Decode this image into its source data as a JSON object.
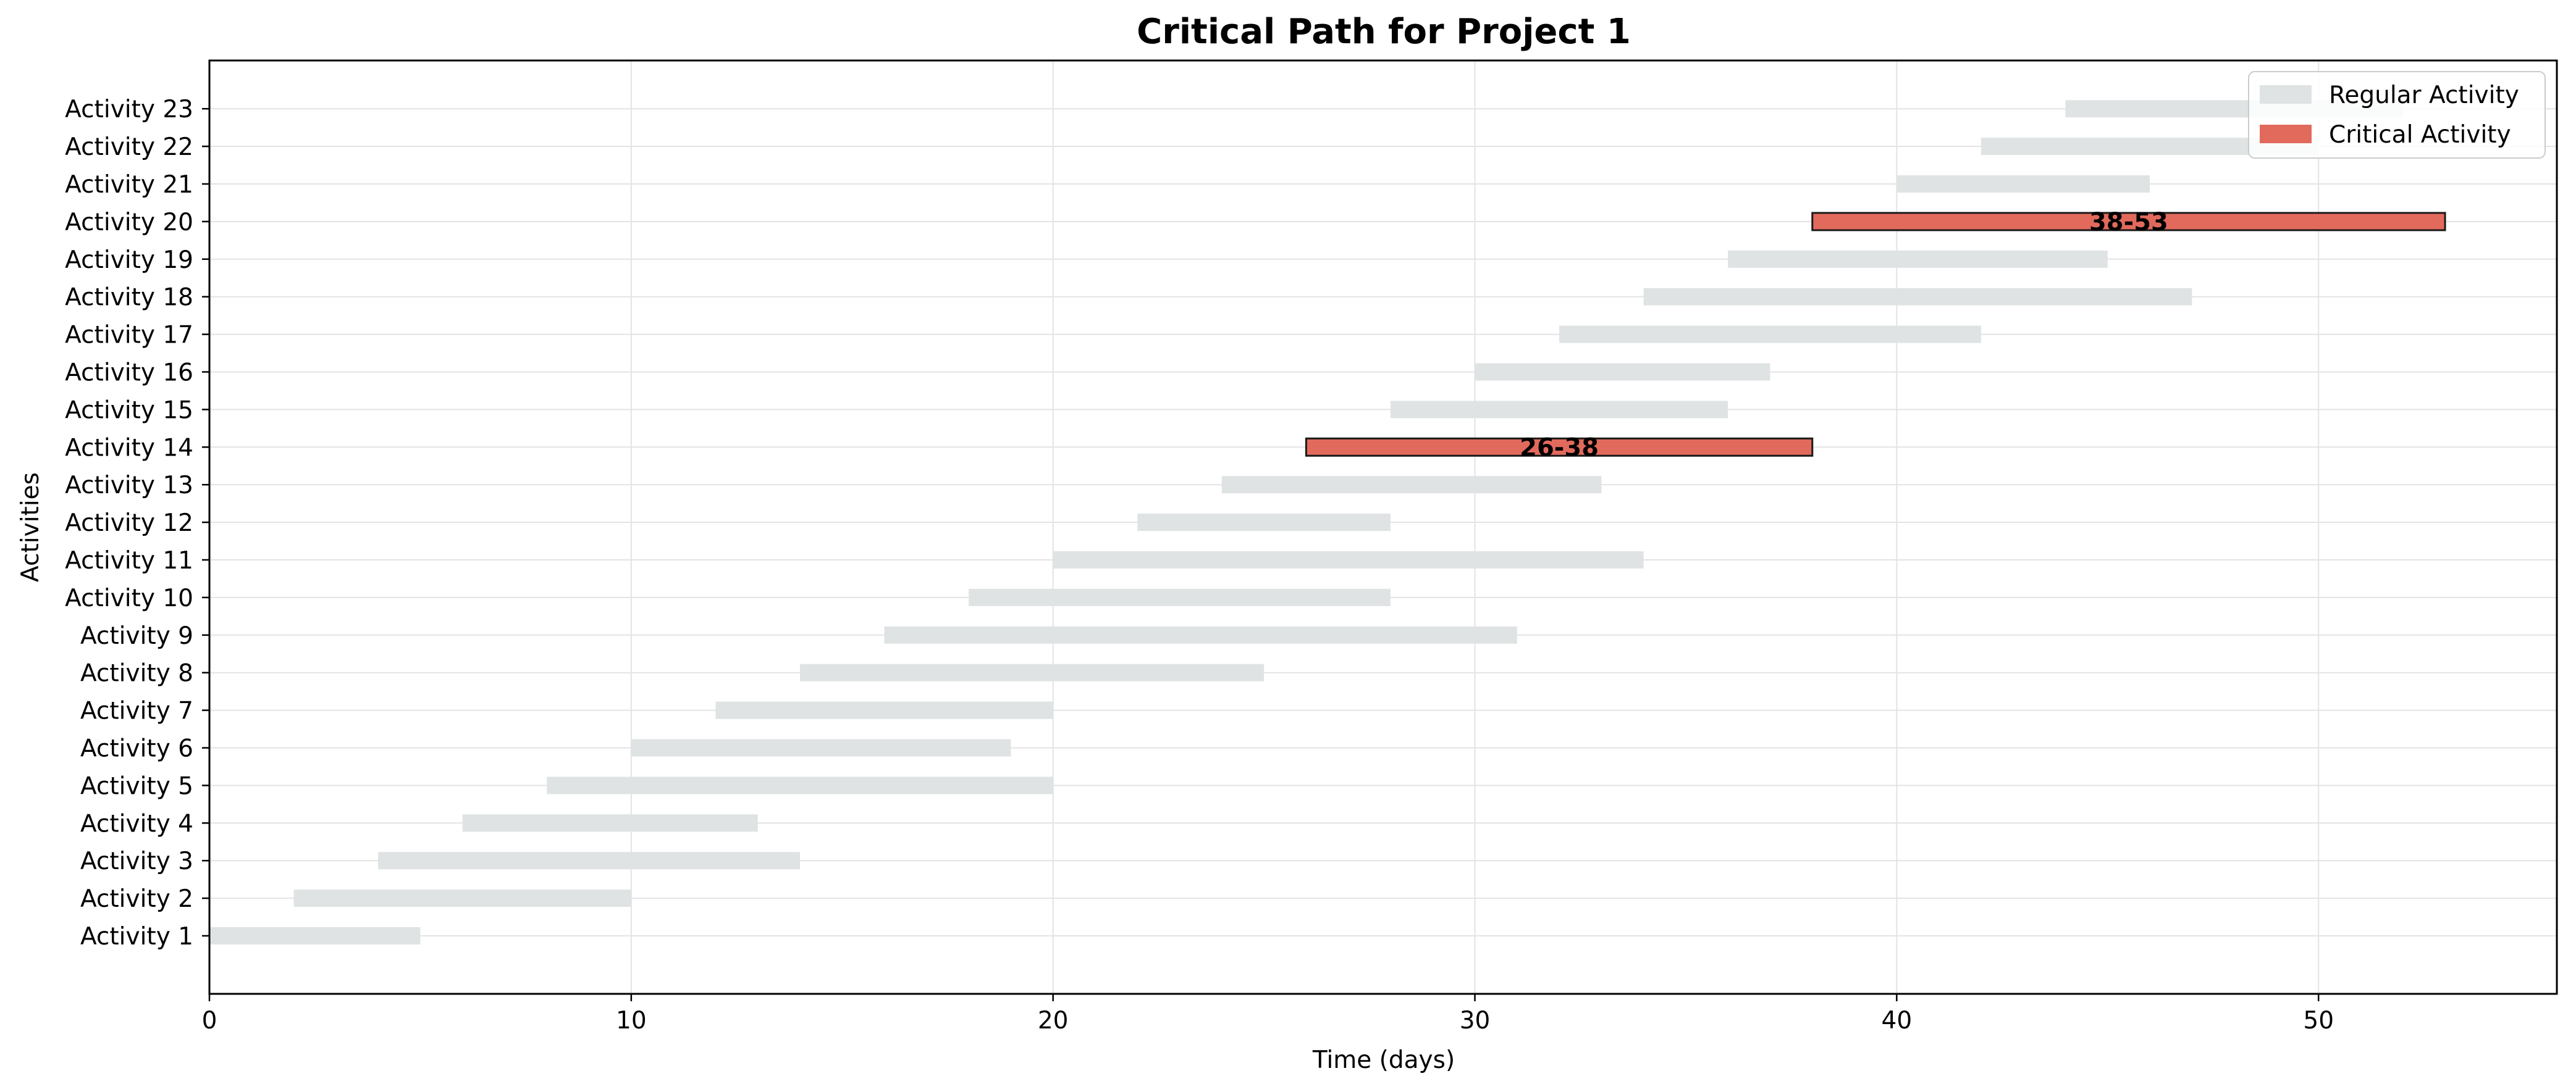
{
  "chart_data": {
    "type": "bar",
    "orientation": "horizontal",
    "title": "Critical Path for Project 1",
    "xlabel": "Time (days)",
    "ylabel": "Activities",
    "xlim": [
      0,
      55.65
    ],
    "x_ticks": [
      0,
      10,
      20,
      30,
      40,
      50
    ],
    "grid": true,
    "legend_position": "top-right",
    "colors": {
      "regular": "#dfe3e4",
      "critical": "#e26a5c",
      "critical_edge": "#1a1a1a",
      "grid": "#e3e3e3"
    },
    "legend": [
      {
        "key": "regular",
        "label": "Regular Activity"
      },
      {
        "key": "critical",
        "label": "Critical Activity"
      }
    ],
    "activities": [
      {
        "name": "Activity 1",
        "start": 0,
        "end": 5,
        "critical": false
      },
      {
        "name": "Activity 2",
        "start": 2,
        "end": 10,
        "critical": false
      },
      {
        "name": "Activity 3",
        "start": 4,
        "end": 14,
        "critical": false
      },
      {
        "name": "Activity 4",
        "start": 6,
        "end": 13,
        "critical": false
      },
      {
        "name": "Activity 5",
        "start": 8,
        "end": 20,
        "critical": false
      },
      {
        "name": "Activity 6",
        "start": 10,
        "end": 19,
        "critical": false
      },
      {
        "name": "Activity 7",
        "start": 12,
        "end": 20,
        "critical": false
      },
      {
        "name": "Activity 8",
        "start": 14,
        "end": 25,
        "critical": false
      },
      {
        "name": "Activity 9",
        "start": 16,
        "end": 31,
        "critical": false
      },
      {
        "name": "Activity 10",
        "start": 18,
        "end": 28,
        "critical": false
      },
      {
        "name": "Activity 11",
        "start": 20,
        "end": 34,
        "critical": false
      },
      {
        "name": "Activity 12",
        "start": 22,
        "end": 28,
        "critical": false
      },
      {
        "name": "Activity 13",
        "start": 24,
        "end": 33,
        "critical": false
      },
      {
        "name": "Activity 14",
        "start": 26,
        "end": 38,
        "critical": true,
        "label": "26-38"
      },
      {
        "name": "Activity 15",
        "start": 28,
        "end": 36,
        "critical": false
      },
      {
        "name": "Activity 16",
        "start": 30,
        "end": 37,
        "critical": false
      },
      {
        "name": "Activity 17",
        "start": 32,
        "end": 42,
        "critical": false
      },
      {
        "name": "Activity 18",
        "start": 34,
        "end": 47,
        "critical": false
      },
      {
        "name": "Activity 19",
        "start": 36,
        "end": 45,
        "critical": false
      },
      {
        "name": "Activity 20",
        "start": 38,
        "end": 53,
        "critical": true,
        "label": "38-53"
      },
      {
        "name": "Activity 21",
        "start": 40,
        "end": 46,
        "critical": false
      },
      {
        "name": "Activity 22",
        "start": 42,
        "end": 50,
        "critical": false
      },
      {
        "name": "Activity 23",
        "start": 44,
        "end": 52,
        "critical": false
      }
    ]
  }
}
